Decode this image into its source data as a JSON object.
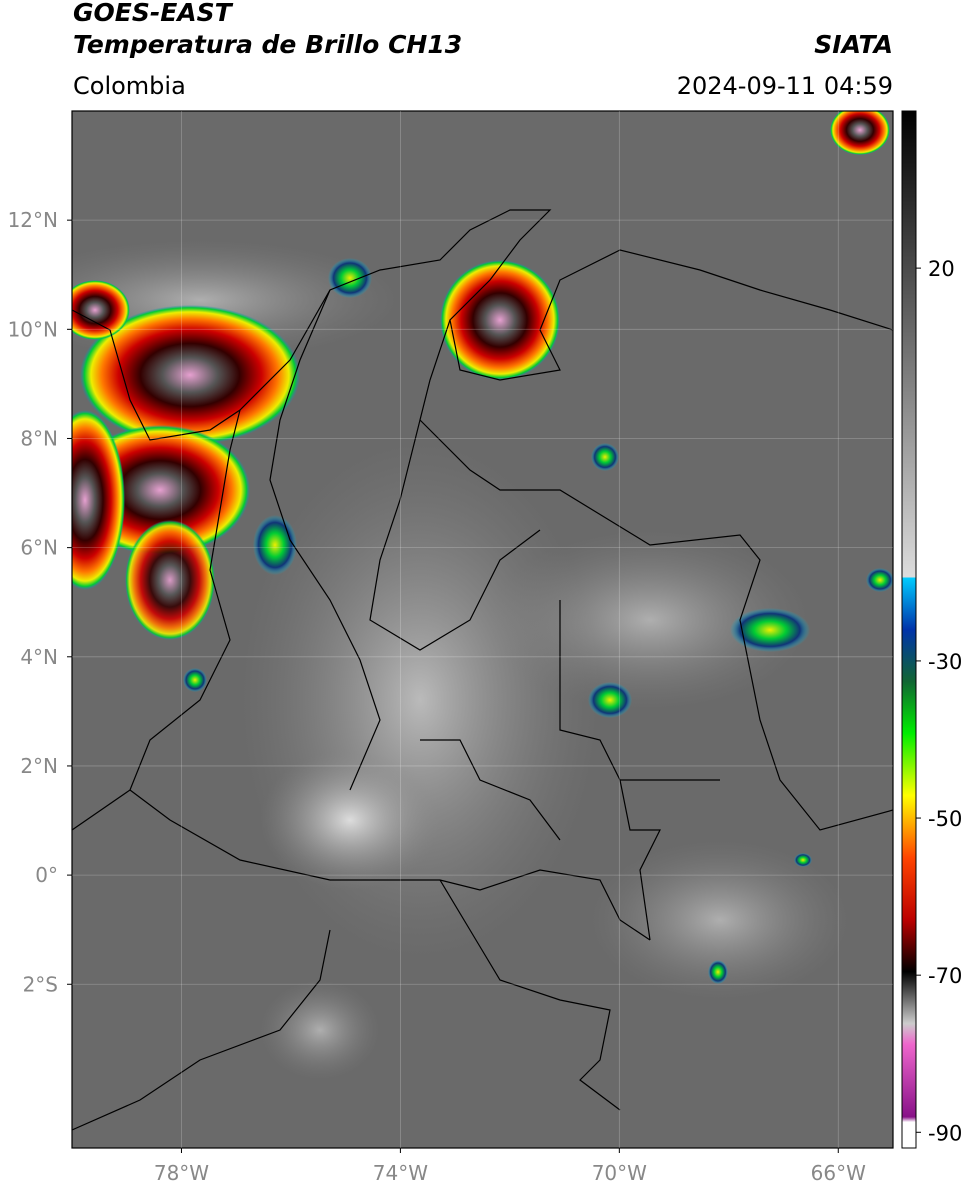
{
  "header": {
    "satellite": "GOES-EAST",
    "product": "Temperatura de Brillo CH13",
    "region": "Colombia",
    "source": "SIATA",
    "datetime": "2024-09-11 04:59"
  },
  "map": {
    "lonlim": [
      -80,
      -65
    ],
    "latlim": [
      -5,
      14
    ],
    "lon_ticks": [
      {
        "value": -78,
        "label": "78°W"
      },
      {
        "value": -74,
        "label": "74°W"
      },
      {
        "value": -70,
        "label": "70°W"
      },
      {
        "value": -66,
        "label": "66°W"
      }
    ],
    "lat_ticks": [
      {
        "value": 12,
        "label": "12°N"
      },
      {
        "value": 10,
        "label": "10°N"
      },
      {
        "value": 8,
        "label": "8°N"
      },
      {
        "value": 6,
        "label": "6°N"
      },
      {
        "value": 4,
        "label": "4°N"
      },
      {
        "value": 2,
        "label": "2°N"
      },
      {
        "value": 0,
        "label": "0°"
      },
      {
        "value": -2,
        "label": "2°S"
      }
    ]
  },
  "colorbar": {
    "lim": [
      -92,
      40
    ],
    "ticks": [
      20,
      -30,
      -50,
      -70,
      -90
    ]
  }
}
